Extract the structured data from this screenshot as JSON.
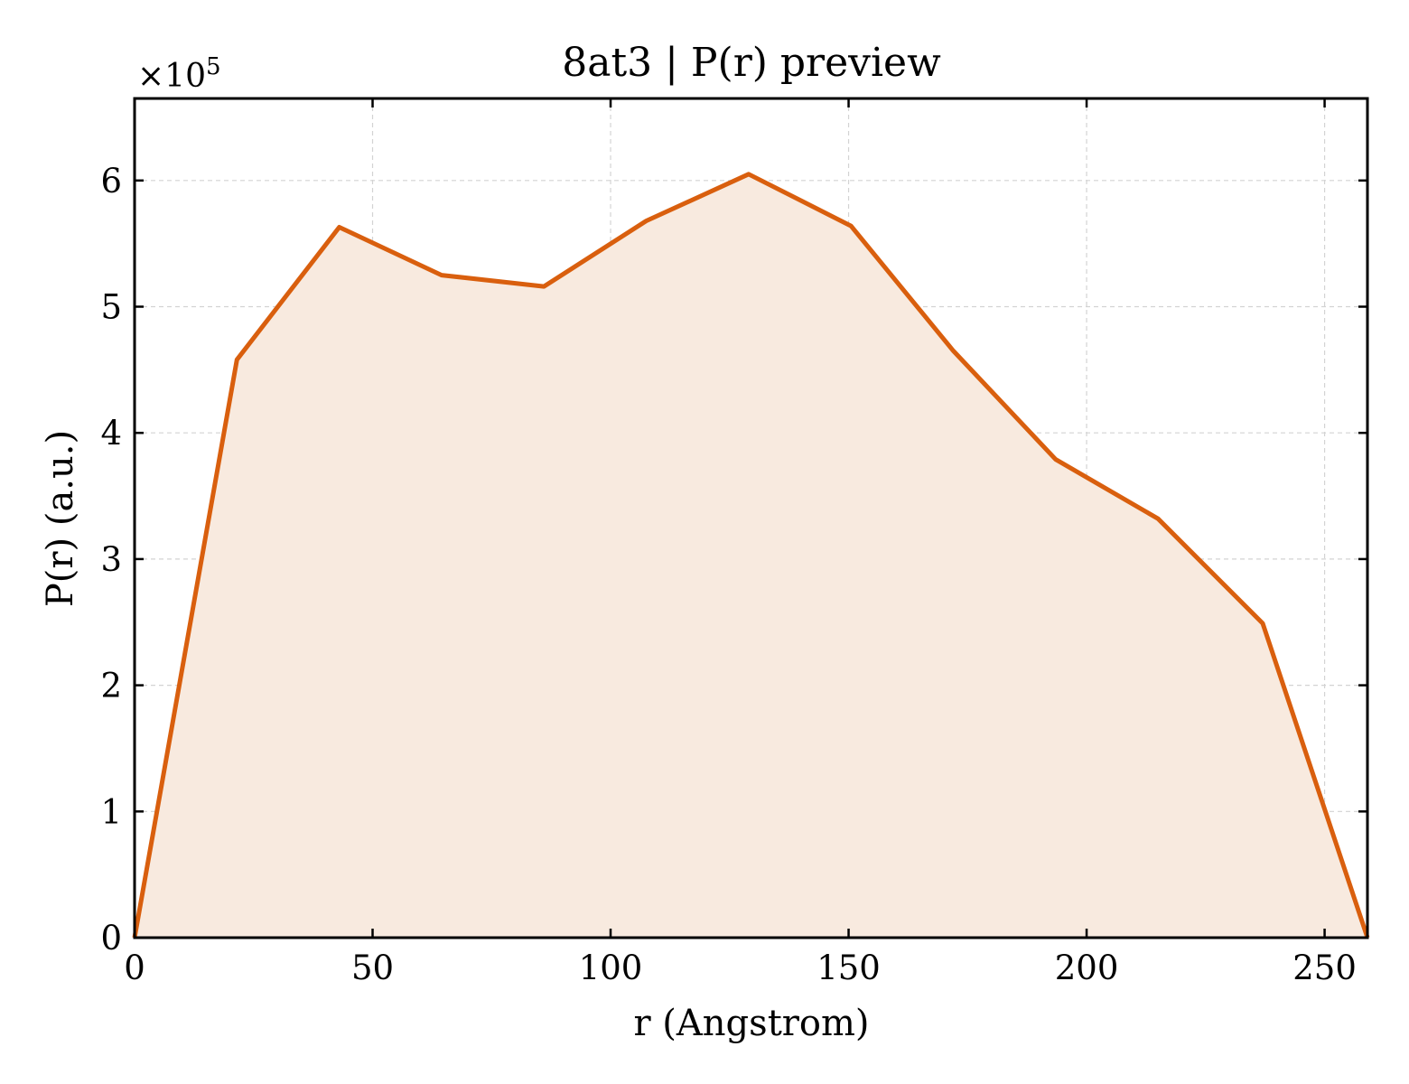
{
  "chart_data": {
    "type": "area",
    "title": "8at3 | P(r) preview",
    "xlabel": "r (Angstrom)",
    "ylabel": "P(r) (a.u.)",
    "y_multiplier": "×10",
    "y_multiplier_exp": "5",
    "xlim": [
      0,
      259
    ],
    "ylim": [
      0,
      6.65
    ],
    "x_ticks": [
      0,
      50,
      100,
      150,
      200,
      250
    ],
    "y_ticks": [
      0,
      1,
      2,
      3,
      4,
      5,
      6
    ],
    "grid": true,
    "line_color": "#d95f0e",
    "fill_color": "#f8eadf",
    "series": [
      {
        "x": [
          0,
          21.5,
          43,
          64.5,
          86,
          107.5,
          129,
          150.5,
          172,
          193.5,
          215,
          237,
          259
        ],
        "y": [
          0,
          4.58,
          5.63,
          5.25,
          5.16,
          5.68,
          6.05,
          5.64,
          4.65,
          3.79,
          3.32,
          2.49,
          0
        ]
      }
    ]
  }
}
